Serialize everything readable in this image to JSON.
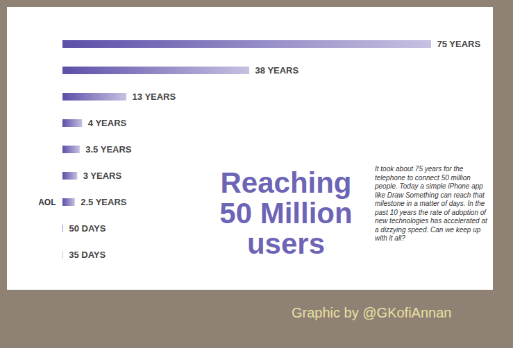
{
  "chart_data": {
    "type": "bar",
    "orientation": "horizontal",
    "title": "Reaching 50 Million users",
    "annotation": "It took about 75 years for the telephone to connect 50 million people. Today a simple iPhone app like Draw Something can reach that milestone in a matter of days. In the past 10 years the rate of adoption of new technologies has accelerated at a dizzying speed. Can we keep up with it all?",
    "caption": "Graphic by @GKofiAnnan",
    "categories": [
      null,
      null,
      null,
      null,
      null,
      null,
      "AOL",
      null,
      null
    ],
    "values": [
      75,
      38,
      13,
      4,
      3.5,
      3,
      2.5,
      0.137,
      0.096
    ],
    "value_labels": [
      "75 YEARS",
      "38 YEARS",
      "13 YEARS",
      "4 YEARS",
      "3.5 YEARS",
      "3 YEARS",
      "2.5 YEARS",
      "50 DAYS",
      "35 DAYS"
    ],
    "data_labels": true,
    "color": "#5b4fa8",
    "xlim": [
      0,
      75
    ],
    "tick_labels": "y",
    "grid": false
  }
}
